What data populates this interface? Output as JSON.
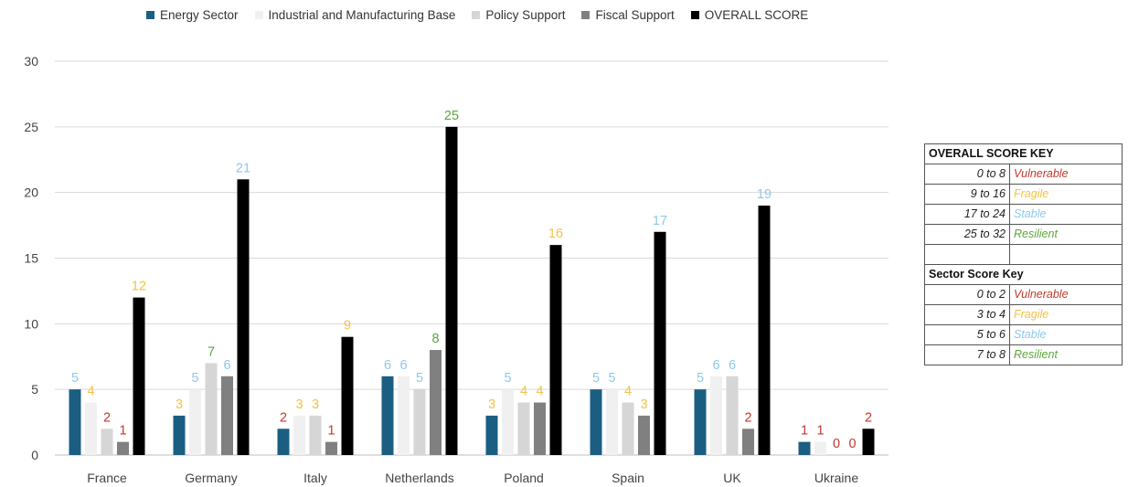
{
  "colors": {
    "vulnerable": "#c0392b",
    "fragile": "#f5c242",
    "stable": "#8fc8ea",
    "resilient": "#5aa83a"
  },
  "chart_data": {
    "type": "bar",
    "title": "",
    "xlabel": "",
    "ylabel": "",
    "ylim": [
      0,
      30
    ],
    "yticks": [
      "0",
      "5",
      "10",
      "15",
      "20",
      "25",
      "30"
    ],
    "grid": true,
    "legend_position": "top",
    "categories": [
      "France",
      "Germany",
      "Italy",
      "Netherlands",
      "Poland",
      "Spain",
      "UK",
      "Ukraine"
    ],
    "series": [
      {
        "name": "Energy Sector",
        "color": "#1b5e82",
        "values": [
          5,
          3,
          2,
          6,
          3,
          5,
          5,
          1
        ]
      },
      {
        "name": "Industrial and Manufacturing Base",
        "color": "#f0f0f0",
        "values": [
          4,
          5,
          3,
          6,
          5,
          5,
          6,
          1
        ]
      },
      {
        "name": "Policy Support",
        "color": "#d6d6d6",
        "values": [
          2,
          7,
          3,
          5,
          4,
          4,
          6,
          0
        ]
      },
      {
        "name": "Fiscal Support",
        "color": "#808080",
        "values": [
          1,
          6,
          1,
          8,
          4,
          3,
          2,
          0
        ]
      },
      {
        "name": "OVERALL SCORE",
        "color": "#000000",
        "values": [
          12,
          21,
          9,
          25,
          16,
          17,
          19,
          2
        ]
      }
    ]
  },
  "score_key": {
    "overall_title": "OVERALL SCORE KEY",
    "overall": [
      {
        "range": "0 to 8",
        "label": "Vulnerable",
        "level": "vulnerable"
      },
      {
        "range": "9 to 16",
        "label": "Fragile",
        "level": "fragile"
      },
      {
        "range": "17 to 24",
        "label": "Stable",
        "level": "stable"
      },
      {
        "range": "25 to 32",
        "label": "Resilient",
        "level": "resilient"
      }
    ],
    "sector_title": "Sector Score Key",
    "sector": [
      {
        "range": "0 to 2",
        "label": "Vulnerable",
        "level": "vulnerable"
      },
      {
        "range": "3 to 4",
        "label": "Fragile",
        "level": "fragile"
      },
      {
        "range": "5 to 6",
        "label": "Stable",
        "level": "stable"
      },
      {
        "range": "7 to 8",
        "label": "Resilient",
        "level": "resilient"
      }
    ]
  }
}
